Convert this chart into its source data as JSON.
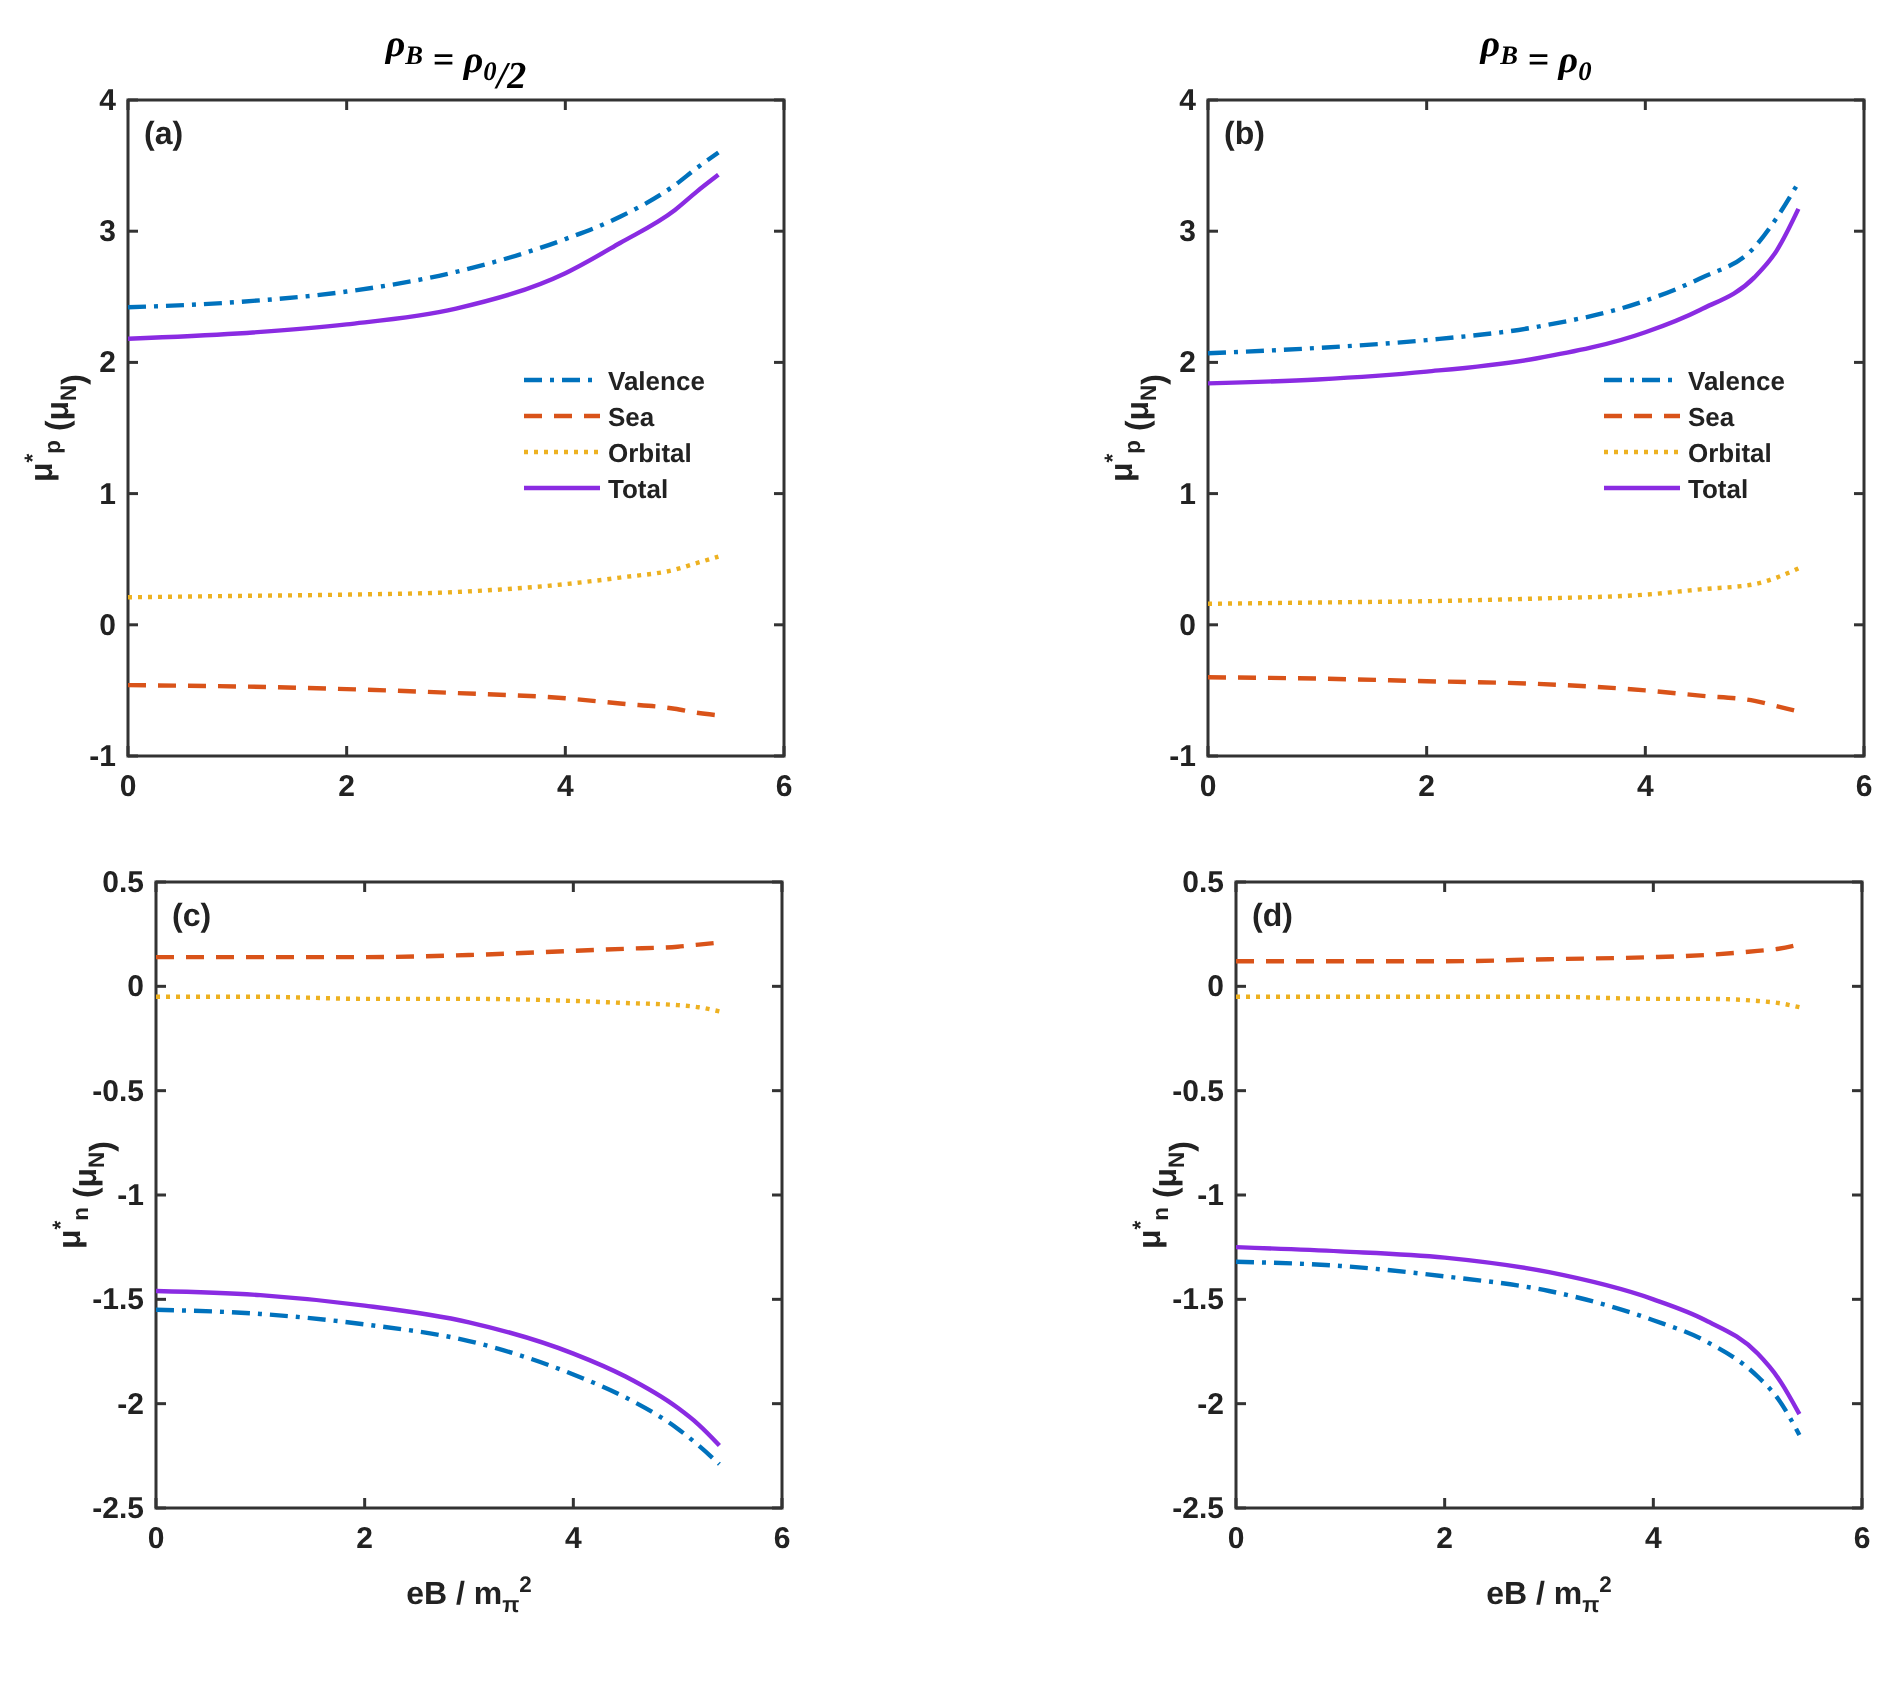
{
  "chart_data": [
    {
      "type": "line",
      "title": "ρ$_{B}$ = ρ$_{0}$/2",
      "ylabel": "μ$^{*}$$_{p}$ (μ$_{N}$)",
      "annotations": [
        "(a)"
      ],
      "x": [
        0,
        1,
        2,
        3,
        4,
        4.5,
        5,
        5.2,
        5.4
      ],
      "xlim": [
        0,
        6
      ],
      "xticks": [
        0,
        2,
        4,
        6
      ],
      "ylim": [
        -1,
        4
      ],
      "yticks": [
        -1,
        0,
        1,
        2,
        3,
        4
      ],
      "legend": "right",
      "marker": "none",
      "series": [
        {
          "name": "Valence",
          "color": "#0072bd",
          "line_style": "dashdot",
          "values": [
            2.42,
            2.46,
            2.54,
            2.69,
            2.94,
            3.11,
            3.35,
            3.48,
            3.6
          ]
        },
        {
          "name": "Sea",
          "color": "#d95319",
          "line_style": "dashed",
          "values": [
            -0.46,
            -0.47,
            -0.49,
            -0.52,
            -0.56,
            -0.6,
            -0.64,
            -0.67,
            -0.69
          ]
        },
        {
          "name": "Orbital",
          "color": "#edb120",
          "line_style": "dotted",
          "values": [
            0.21,
            0.22,
            0.23,
            0.25,
            0.31,
            0.36,
            0.42,
            0.47,
            0.52
          ]
        },
        {
          "name": "Total",
          "color": "#8a2be2",
          "line_style": "solid",
          "values": [
            2.18,
            2.22,
            2.29,
            2.41,
            2.68,
            2.91,
            3.16,
            3.3,
            3.43
          ]
        }
      ]
    },
    {
      "type": "line",
      "title": "ρ$_{B}$ = ρ$_{0}$",
      "ylabel": "μ$^{*}$$_{p}$ (μ$_{N}$)",
      "annotations": [
        "(b)"
      ],
      "x": [
        0,
        1,
        2,
        3,
        4,
        4.5,
        5,
        5.2,
        5.4
      ],
      "xlim": [
        0,
        6
      ],
      "xticks": [
        0,
        2,
        4,
        6
      ],
      "ylim": [
        -1,
        4
      ],
      "yticks": [
        -1,
        0,
        1,
        2,
        3,
        4
      ],
      "legend": "right",
      "marker": "none",
      "series": [
        {
          "name": "Valence",
          "color": "#0072bd",
          "line_style": "dashdot",
          "values": [
            2.07,
            2.11,
            2.17,
            2.27,
            2.47,
            2.64,
            2.88,
            3.1,
            3.37
          ]
        },
        {
          "name": "Sea",
          "color": "#d95319",
          "line_style": "dashed",
          "values": [
            -0.4,
            -0.41,
            -0.43,
            -0.45,
            -0.5,
            -0.54,
            -0.58,
            -0.62,
            -0.66
          ]
        },
        {
          "name": "Orbital",
          "color": "#edb120",
          "line_style": "dotted",
          "values": [
            0.16,
            0.17,
            0.18,
            0.2,
            0.23,
            0.27,
            0.31,
            0.36,
            0.43
          ]
        },
        {
          "name": "Total",
          "color": "#8a2be2",
          "line_style": "solid",
          "values": [
            1.84,
            1.87,
            1.93,
            2.03,
            2.23,
            2.4,
            2.65,
            2.85,
            3.17
          ]
        }
      ]
    },
    {
      "type": "line",
      "xlabel": "eB / m$_{π}$$^{2}$",
      "ylabel": "μ$^{*}$$_{n}$ (μ$_{N}$)",
      "annotations": [
        "(c)"
      ],
      "x": [
        0,
        1,
        2,
        3,
        4,
        4.5,
        5,
        5.2,
        5.4
      ],
      "xlim": [
        0,
        6
      ],
      "xticks": [
        0,
        2,
        4,
        6
      ],
      "ylim": [
        -2.5,
        0.5
      ],
      "yticks": [
        -2.5,
        -2,
        -1.5,
        -1,
        -0.5,
        0,
        0.5
      ],
      "marker": "none",
      "series": [
        {
          "color": "#0072bd",
          "line_style": "dashdot",
          "values": [
            -1.55,
            -1.57,
            -1.62,
            -1.7,
            -1.86,
            -1.97,
            -2.12,
            -2.2,
            -2.29
          ]
        },
        {
          "color": "#d95319",
          "line_style": "dashed",
          "values": [
            0.14,
            0.14,
            0.14,
            0.15,
            0.17,
            0.18,
            0.19,
            0.2,
            0.21
          ]
        },
        {
          "color": "#edb120",
          "line_style": "dotted",
          "values": [
            -0.05,
            -0.05,
            -0.06,
            -0.06,
            -0.07,
            -0.08,
            -0.09,
            -0.1,
            -0.12
          ]
        },
        {
          "color": "#8a2be2",
          "line_style": "solid",
          "values": [
            -1.46,
            -1.48,
            -1.53,
            -1.61,
            -1.76,
            -1.87,
            -2.02,
            -2.1,
            -2.2
          ]
        }
      ]
    },
    {
      "type": "line",
      "xlabel": "eB / m$_{π}$$^{2}$",
      "ylabel": "μ$^{*}$$_{n}$ (μ$_{N}$)",
      "annotations": [
        "(d)"
      ],
      "x": [
        0,
        1,
        2,
        3,
        4,
        4.5,
        5,
        5.2,
        5.4
      ],
      "xlim": [
        0,
        6
      ],
      "xticks": [
        0,
        2,
        4,
        6
      ],
      "ylim": [
        -2.5,
        0.5
      ],
      "yticks": [
        -2.5,
        -2,
        -1.5,
        -1,
        -0.5,
        0,
        0.5
      ],
      "marker": "none",
      "series": [
        {
          "color": "#0072bd",
          "line_style": "dashdot",
          "values": [
            -1.32,
            -1.34,
            -1.39,
            -1.46,
            -1.6,
            -1.7,
            -1.87,
            -1.98,
            -2.15
          ]
        },
        {
          "color": "#d95319",
          "line_style": "dashed",
          "values": [
            0.12,
            0.12,
            0.12,
            0.13,
            0.14,
            0.15,
            0.17,
            0.18,
            0.2
          ]
        },
        {
          "color": "#edb120",
          "line_style": "dotted",
          "values": [
            -0.05,
            -0.05,
            -0.05,
            -0.05,
            -0.06,
            -0.06,
            -0.07,
            -0.08,
            -0.1
          ]
        },
        {
          "color": "#8a2be2",
          "line_style": "solid",
          "values": [
            -1.25,
            -1.27,
            -1.3,
            -1.37,
            -1.5,
            -1.6,
            -1.76,
            -1.88,
            -2.05
          ]
        }
      ]
    }
  ]
}
